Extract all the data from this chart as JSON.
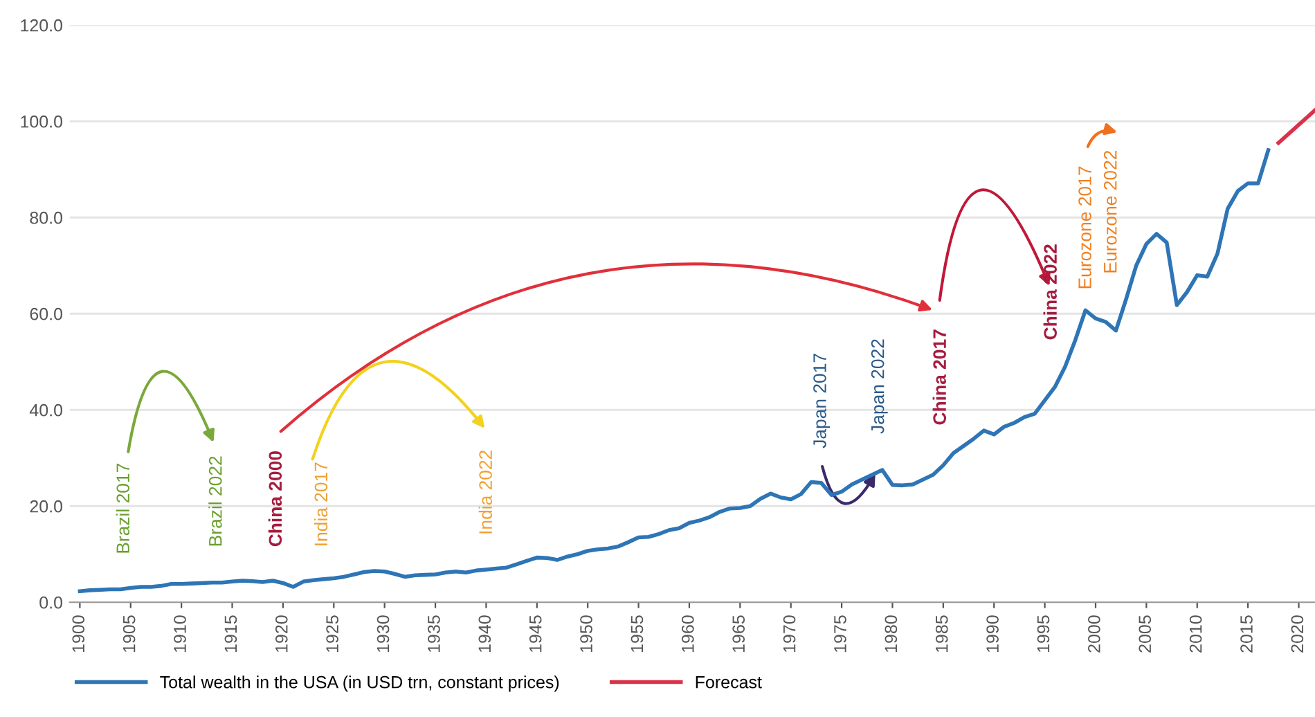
{
  "chart_data": {
    "type": "line",
    "series": [
      {
        "name": "Total wealth in the USA (in USD trn, constant prices)",
        "color": "#2e75b6",
        "x": [
          1900,
          1901,
          1902,
          1903,
          1904,
          1905,
          1906,
          1907,
          1908,
          1909,
          1910,
          1911,
          1912,
          1913,
          1914,
          1915,
          1916,
          1917,
          1918,
          1919,
          1920,
          1921,
          1922,
          1923,
          1924,
          1925,
          1926,
          1927,
          1928,
          1929,
          1930,
          1931,
          1932,
          1933,
          1934,
          1935,
          1936,
          1937,
          1938,
          1939,
          1940,
          1941,
          1942,
          1943,
          1944,
          1945,
          1946,
          1947,
          1948,
          1949,
          1950,
          1951,
          1952,
          1953,
          1954,
          1955,
          1956,
          1957,
          1958,
          1959,
          1960,
          1961,
          1962,
          1963,
          1964,
          1965,
          1966,
          1967,
          1968,
          1969,
          1970,
          1971,
          1972,
          1973,
          1974,
          1975,
          1976,
          1977,
          1978,
          1979,
          1980,
          1981,
          1982,
          1983,
          1984,
          1985,
          1986,
          1987,
          1988,
          1989,
          1990,
          1991,
          1992,
          1993,
          1994,
          1995,
          1996,
          1997,
          1998,
          1999,
          2000,
          2001,
          2002,
          2003,
          2004,
          2005,
          2006,
          2007,
          2008,
          2009,
          2010,
          2011,
          2012,
          2013,
          2014,
          2015,
          2016,
          2017
        ],
        "values": [
          2.3,
          2.5,
          2.6,
          2.7,
          2.7,
          3.0,
          3.2,
          3.2,
          3.4,
          3.8,
          3.8,
          3.9,
          4.0,
          4.1,
          4.1,
          4.3,
          4.5,
          4.4,
          4.2,
          4.5,
          4.0,
          3.2,
          4.3,
          4.6,
          4.8,
          5.0,
          5.3,
          5.8,
          6.3,
          6.5,
          6.4,
          5.9,
          5.3,
          5.6,
          5.7,
          5.8,
          6.2,
          6.4,
          6.2,
          6.6,
          6.8,
          7.0,
          7.2,
          7.9,
          8.6,
          9.3,
          9.2,
          8.8,
          9.5,
          10.0,
          10.7,
          11.0,
          11.2,
          11.6,
          12.5,
          13.5,
          13.6,
          14.2,
          15.0,
          15.4,
          16.5,
          17.0,
          17.7,
          18.8,
          19.5,
          19.6,
          20.0,
          21.5,
          22.6,
          21.8,
          21.4,
          22.5,
          25.0,
          24.8,
          22.3,
          23.0,
          24.5,
          25.5,
          26.5,
          27.5,
          24.4,
          24.3,
          24.5,
          25.5,
          26.5,
          28.5,
          31.0,
          32.5,
          34.0,
          35.7,
          34.9,
          36.5,
          37.3,
          38.5,
          39.2,
          42.0,
          44.8,
          49.0,
          54.5,
          60.7,
          59.0,
          58.3,
          56.5,
          63.0,
          70.0,
          74.5,
          76.6,
          74.8,
          61.8,
          64.5,
          68.0,
          67.7,
          72.5,
          81.8,
          85.5,
          87.1,
          87.1,
          94.0
        ]
      },
      {
        "name": "Forecast",
        "color": "#d9324a",
        "x": [
          2018,
          2021.6
        ],
        "values": [
          95.5,
          102.3
        ]
      }
    ],
    "annotations": [
      "Brazil 2017",
      "Brazil 2022",
      "China 2000",
      "India 2017",
      "India 2022",
      "Japan 2017",
      "Japan 2022",
      "China 2017",
      "China 2022",
      "Eurozone 2017",
      "Eurozone 2022"
    ],
    "xlim": [
      1899,
      2021.6
    ],
    "xticks": [
      1900,
      1905,
      1910,
      1915,
      1920,
      1925,
      1930,
      1935,
      1940,
      1945,
      1950,
      1955,
      1960,
      1965,
      1970,
      1975,
      1980,
      1985,
      1990,
      1995,
      2000,
      2005,
      2010,
      2015,
      2020
    ],
    "ylim": [
      0,
      120
    ],
    "yticks": [
      {
        "value": 0,
        "label": "0.0"
      },
      {
        "value": 20,
        "label": "20.0"
      },
      {
        "value": 40,
        "label": "40.0"
      },
      {
        "value": 60,
        "label": "60.0"
      },
      {
        "value": 80,
        "label": "80.0"
      },
      {
        "value": 100,
        "label": "100.0"
      },
      {
        "value": 120,
        "label": "120.0"
      }
    ],
    "grid": "y",
    "legend": "bottom",
    "line_style": "solid"
  }
}
